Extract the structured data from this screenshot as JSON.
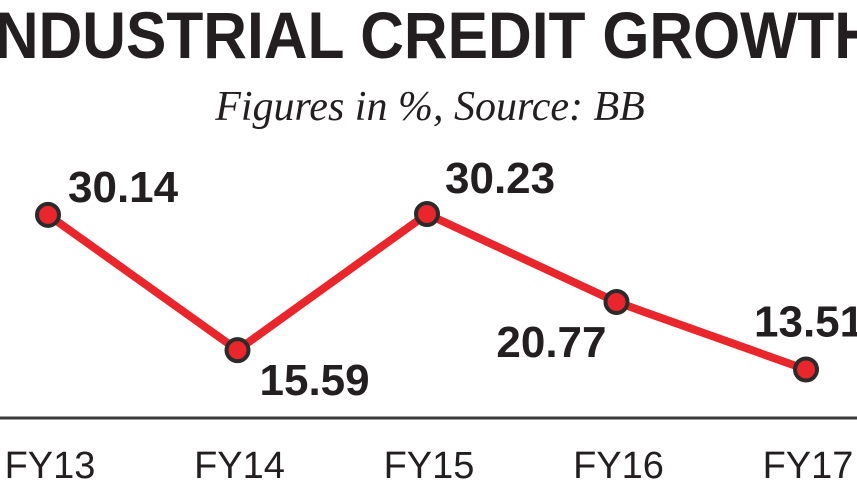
{
  "chart_data": {
    "type": "line",
    "title": "INDUSTRIAL CREDIT GROWTH",
    "subtitle": "Figures in %, Source: BB",
    "categories": [
      "FY13",
      "FY14",
      "FY15",
      "FY16",
      "FY17"
    ],
    "values": [
      30.14,
      15.59,
      30.23,
      20.77,
      13.51
    ],
    "color": "#e8262b"
  }
}
